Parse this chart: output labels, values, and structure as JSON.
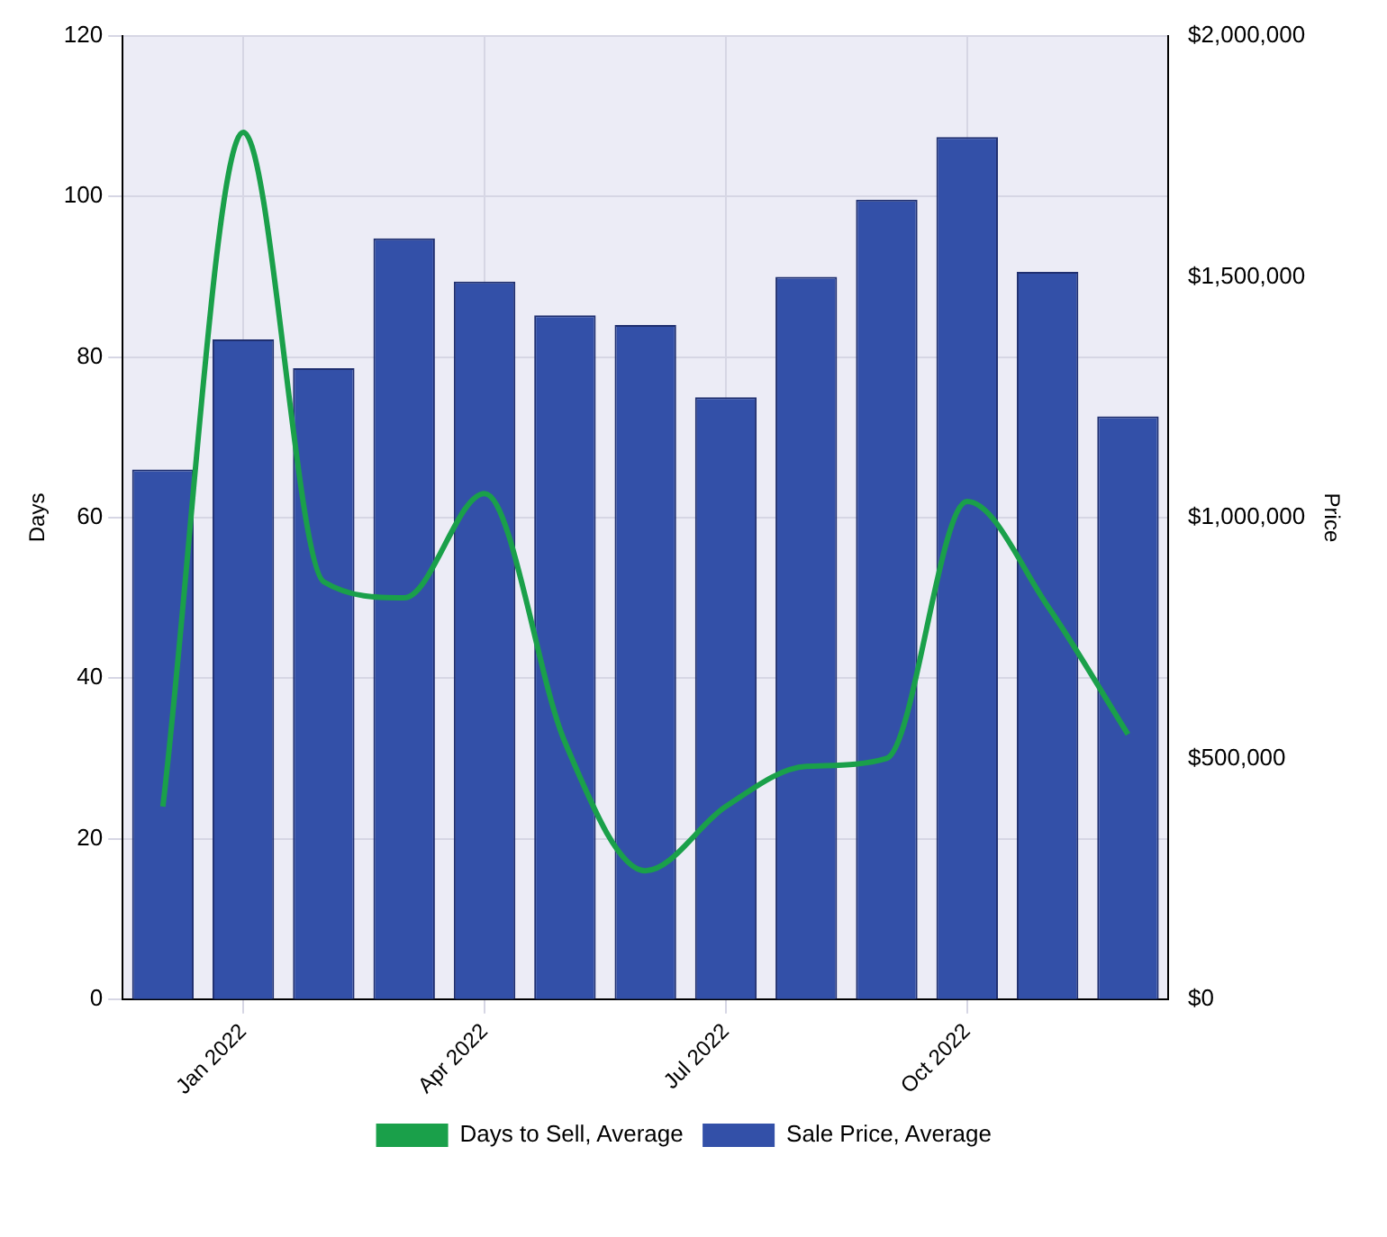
{
  "chart_data": {
    "type": "bar",
    "ylabel": "Days",
    "y2label": "Price",
    "categories": [
      null,
      "Jan 2022",
      null,
      null,
      "Apr 2022",
      null,
      null,
      "Jul 2022",
      null,
      null,
      "Oct 2022",
      null,
      null
    ],
    "series": [
      {
        "name": "Days to Sell, Average",
        "type": "line",
        "axis": "y",
        "color": "#1aa04a",
        "values": [
          24,
          108,
          52,
          50,
          63,
          32,
          16,
          24,
          29,
          30,
          62,
          49,
          33
        ]
      },
      {
        "name": "Sale Price, Average",
        "axis": "y2",
        "color": "#3350a8",
        "values": [
          1100000,
          1370000,
          1310000,
          1580000,
          1490000,
          1420000,
          1400000,
          1250000,
          1500000,
          1660000,
          1790000,
          1510000,
          1210000
        ]
      }
    ],
    "ylim": [
      0,
      120
    ],
    "yticks": [
      0,
      20,
      40,
      60,
      80,
      100,
      120
    ],
    "y2lim": [
      0,
      2000000
    ],
    "y2ticks": [
      {
        "value": 0,
        "label": "$0"
      },
      {
        "value": 500000,
        "label": "$500,000"
      },
      {
        "value": 1000000,
        "label": "$1,000,000"
      },
      {
        "value": 1500000,
        "label": "$1,500,000"
      },
      {
        "value": 2000000,
        "label": "$2,000,000"
      }
    ],
    "grid": true,
    "legend": "bottom",
    "marker": "none",
    "line_style": "solid"
  }
}
